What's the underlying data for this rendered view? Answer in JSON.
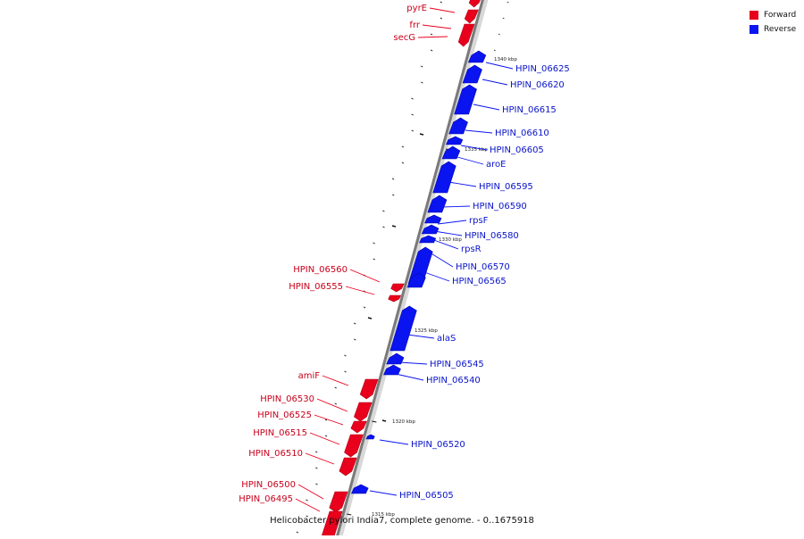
{
  "legend": {
    "forward": {
      "label": "Forward",
      "color": "#e8001c"
    },
    "reverse": {
      "label": "Reverse",
      "color": "#0a14f0"
    }
  },
  "caption": "Helicobacter pylori India7, complete genome. - 0..1675918",
  "ticks": [
    "1340 kbp",
    "1335 kbp",
    "1330 kbp",
    "1325 kbp",
    "1320 kbp",
    "1315 kbp"
  ],
  "genes": [
    {
      "name": "pyrE",
      "strand": "forward"
    },
    {
      "name": "frr",
      "strand": "forward"
    },
    {
      "name": "secG",
      "strand": "forward"
    },
    {
      "name": "HPIN_06625",
      "strand": "reverse"
    },
    {
      "name": "HPIN_06620",
      "strand": "reverse"
    },
    {
      "name": "HPIN_06615",
      "strand": "reverse"
    },
    {
      "name": "HPIN_06610",
      "strand": "reverse"
    },
    {
      "name": "HPIN_06605",
      "strand": "reverse"
    },
    {
      "name": "aroE",
      "strand": "reverse"
    },
    {
      "name": "HPIN_06595",
      "strand": "reverse"
    },
    {
      "name": "HPIN_06590",
      "strand": "reverse"
    },
    {
      "name": "rpsF",
      "strand": "reverse"
    },
    {
      "name": "HPIN_06580",
      "strand": "reverse"
    },
    {
      "name": "rpsR",
      "strand": "reverse"
    },
    {
      "name": "HPIN_06570",
      "strand": "reverse"
    },
    {
      "name": "HPIN_06565",
      "strand": "reverse"
    },
    {
      "name": "HPIN_06560",
      "strand": "forward"
    },
    {
      "name": "HPIN_06555",
      "strand": "forward"
    },
    {
      "name": "alaS",
      "strand": "reverse"
    },
    {
      "name": "HPIN_06545",
      "strand": "reverse"
    },
    {
      "name": "HPIN_06540",
      "strand": "reverse"
    },
    {
      "name": "amiF",
      "strand": "forward"
    },
    {
      "name": "HPIN_06530",
      "strand": "forward"
    },
    {
      "name": "HPIN_06525",
      "strand": "forward"
    },
    {
      "name": "HPIN_06520",
      "strand": "reverse"
    },
    {
      "name": "HPIN_06515",
      "strand": "forward"
    },
    {
      "name": "HPIN_06510",
      "strand": "forward"
    },
    {
      "name": "HPIN_06505",
      "strand": "reverse"
    },
    {
      "name": "HPIN_06500",
      "strand": "forward"
    },
    {
      "name": "HPIN_06495",
      "strand": "forward"
    }
  ]
}
